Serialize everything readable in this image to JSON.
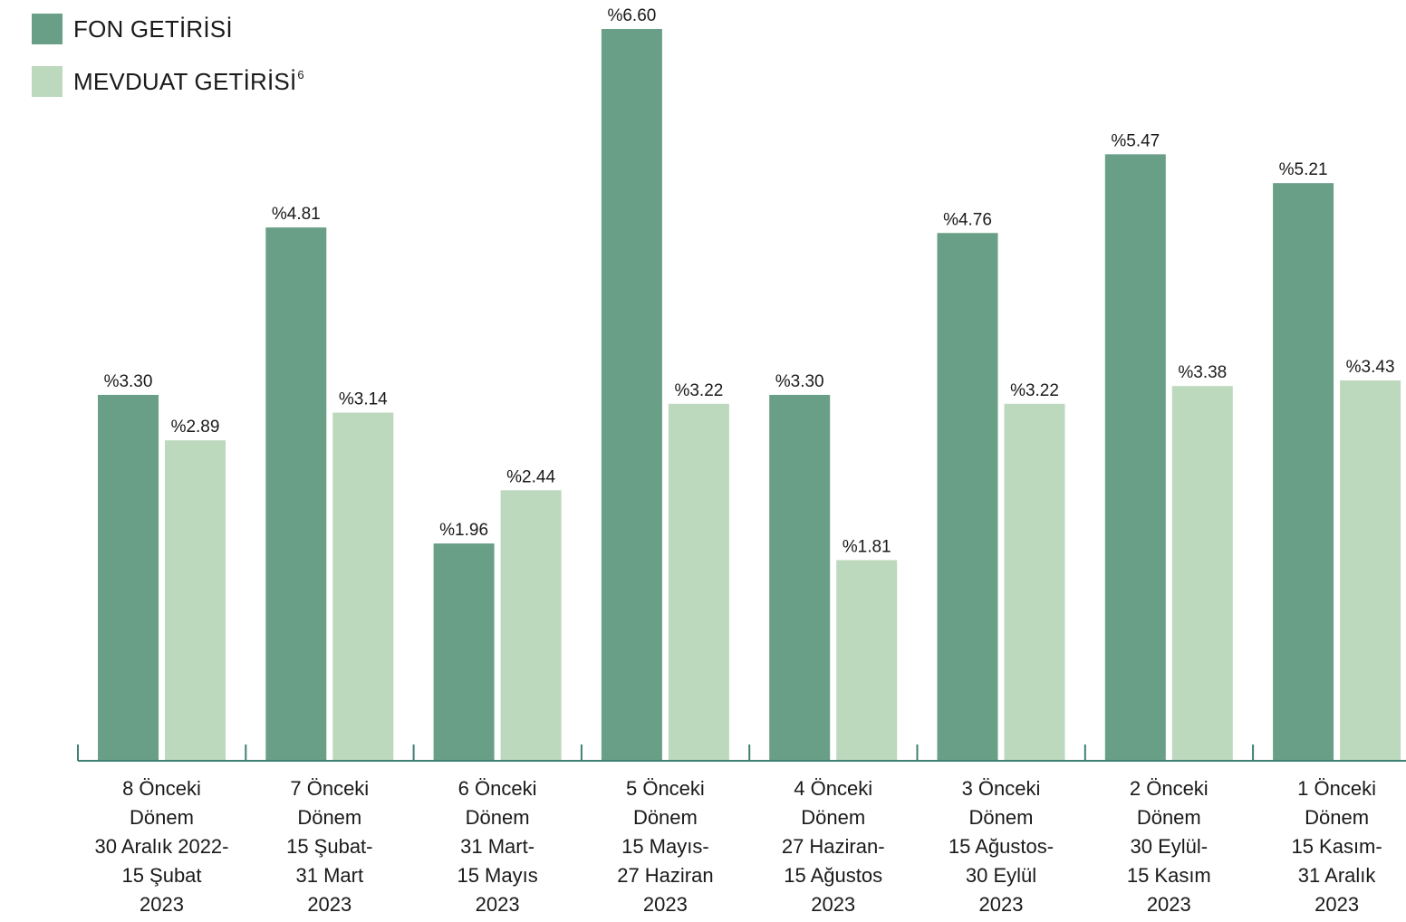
{
  "chart_data": {
    "type": "bar",
    "categories": [
      [
        "8 Önceki",
        "Dönem",
        "30 Aralık 2022-",
        "15 Şubat",
        "2023"
      ],
      [
        "7 Önceki",
        "Dönem",
        "15 Şubat-",
        "31 Mart",
        "2023"
      ],
      [
        "6 Önceki",
        "Dönem",
        "31 Mart-",
        "15 Mayıs",
        "2023"
      ],
      [
        "5 Önceki",
        "Dönem",
        "15 Mayıs-",
        "27 Haziran",
        "2023"
      ],
      [
        "4 Önceki",
        "Dönem",
        "27 Haziran-",
        "15 Ağustos",
        "2023"
      ],
      [
        "3 Önceki",
        "Dönem",
        "15 Ağustos-",
        "30 Eylül",
        "2023"
      ],
      [
        "2 Önceki",
        "Dönem",
        "30 Eylül-",
        "15 Kasım",
        "2023"
      ],
      [
        "1 Önceki",
        "Dönem",
        "15 Kasım-",
        "31 Aralık",
        "2023"
      ]
    ],
    "series": [
      {
        "name": "FON GETİRİSİ",
        "color": "#6a9f87",
        "values": [
          3.3,
          4.81,
          1.96,
          6.6,
          3.3,
          4.76,
          5.47,
          5.21
        ],
        "labels": [
          "%3.30",
          "%4.81",
          "%1.96",
          "%6.60",
          "%3.30",
          "%4.76",
          "%5.47",
          "%5.21"
        ]
      },
      {
        "name": "MEVDUAT GETİRİSİ",
        "name_superscript": "6",
        "color": "#bcd8bd",
        "values": [
          2.89,
          3.14,
          2.44,
          3.22,
          1.81,
          3.22,
          3.38,
          3.43
        ],
        "labels": [
          "%2.89",
          "%3.14",
          "%2.44",
          "%3.22",
          "%1.81",
          "%3.22",
          "%3.38",
          "%3.43"
        ]
      }
    ],
    "title": "",
    "xlabel": "",
    "ylabel": "",
    "ylim": [
      0,
      6.6
    ],
    "grid": false,
    "legend_position": "top-left",
    "axis_color": "#3f7f72"
  }
}
